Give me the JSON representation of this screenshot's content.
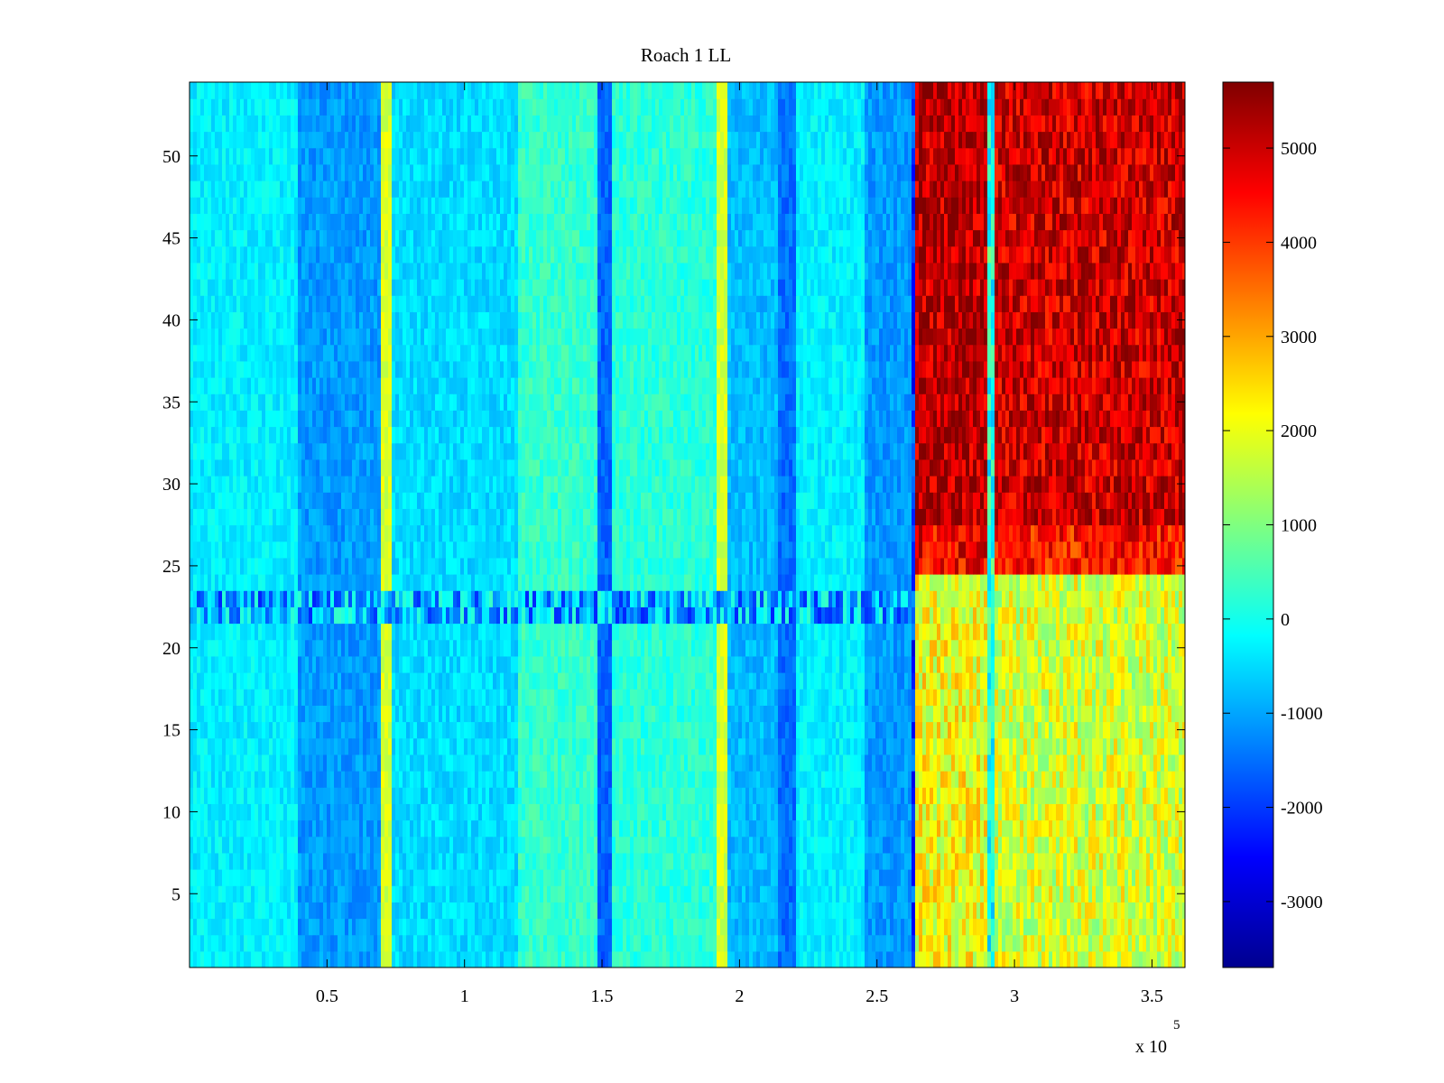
{
  "chart_data": {
    "type": "heatmap",
    "title": "Roach 1 LL",
    "xlabel": "",
    "ylabel": "",
    "x_exponent_label": "x 10",
    "x_exponent_power": "5",
    "xlim": [
      0,
      3.62
    ],
    "ylim": [
      0.5,
      54.5
    ],
    "x_ticks": [
      0.5,
      1,
      1.5,
      2,
      2.5,
      3,
      3.5
    ],
    "x_tick_labels": [
      "0.5",
      "1",
      "1.5",
      "2",
      "2.5",
      "3",
      "3.5"
    ],
    "y_ticks": [
      5,
      10,
      15,
      20,
      25,
      30,
      35,
      40,
      45,
      50
    ],
    "y_tick_labels": [
      "5",
      "10",
      "15",
      "20",
      "25",
      "30",
      "35",
      "40",
      "45",
      "50"
    ],
    "rows": 54,
    "colormap": "jet",
    "clim": [
      -3700,
      5700
    ],
    "colorbar": {
      "ticks": [
        -3000,
        -2000,
        -1000,
        0,
        1000,
        2000,
        3000,
        4000,
        5000
      ],
      "tick_labels": [
        "-3000",
        "-2000",
        "-1000",
        "0",
        "1000",
        "2000",
        "3000",
        "4000",
        "5000"
      ]
    },
    "bands": [
      {
        "x": [
          0.0,
          0.4
        ],
        "value": -300
      },
      {
        "x": [
          0.4,
          0.7
        ],
        "value": -1100
      },
      {
        "x": [
          0.7,
          0.73
        ],
        "value": 1800
      },
      {
        "x": [
          0.73,
          1.2
        ],
        "value": -500
      },
      {
        "x": [
          1.2,
          1.48
        ],
        "value": 300
      },
      {
        "x": [
          1.48,
          1.54
        ],
        "value": -1600
      },
      {
        "x": [
          1.54,
          1.92
        ],
        "value": 200
      },
      {
        "x": [
          1.92,
          1.95
        ],
        "value": 1800
      },
      {
        "x": [
          1.95,
          2.14
        ],
        "value": -800
      },
      {
        "x": [
          2.14,
          2.2
        ],
        "value": -1500
      },
      {
        "x": [
          2.2,
          2.45
        ],
        "value": -300
      },
      {
        "x": [
          2.45,
          2.62
        ],
        "value": -1100
      },
      {
        "x": [
          2.62,
          2.64
        ],
        "value": -2000
      },
      {
        "x": [
          2.64,
          2.9
        ],
        "value": 5200,
        "lower_value": 2500
      },
      {
        "x": [
          2.9,
          2.93
        ],
        "value": 100
      },
      {
        "x": [
          2.93,
          3.62
        ],
        "value": 5000,
        "lower_value": 2200
      }
    ],
    "row_band": {
      "y": [
        21.5,
        23.5
      ],
      "value": -1200
    }
  }
}
